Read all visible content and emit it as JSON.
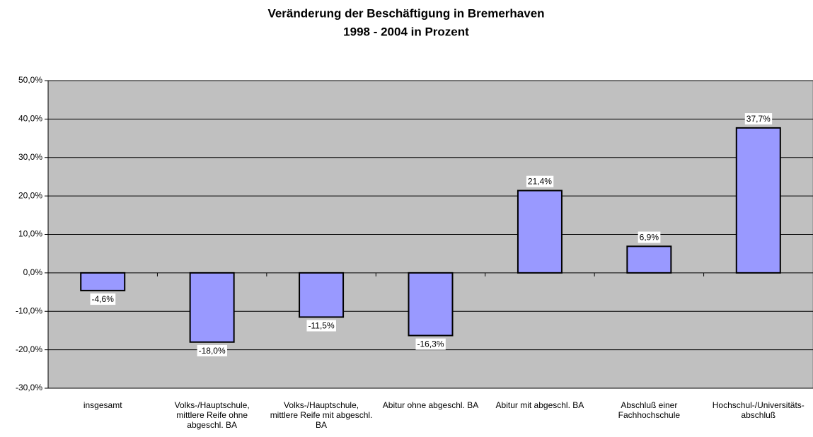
{
  "chart_data": {
    "type": "bar",
    "title": "Veränderung der Beschäftigung in Bremerhaven",
    "subtitle": "1998 - 2004 in Prozent",
    "categories": [
      "insgesamt",
      "Volks-/Hauptschule, mittlere Reife ohne abgeschl. BA",
      "Volks-/Hauptschule, mittlere Reife mit abgeschl. BA",
      "Abitur ohne abgeschl. BA",
      "Abitur mit abgeschl. BA",
      "Abschluß einer Fachhochschule",
      "Hochschul-/Universitäts-abschluß"
    ],
    "values": [
      -4.6,
      -18.0,
      -11.5,
      -16.3,
      21.4,
      6.9,
      37.7
    ],
    "value_labels": [
      "-4,6%",
      "-18,0%",
      "-11,5%",
      "-16,3%",
      "21,4%",
      "6,9%",
      "37,7%"
    ],
    "color": "#9999ff",
    "ylim": [
      -30,
      50
    ],
    "yticks": [
      {
        "value": -30,
        "label": "-30,0%"
      },
      {
        "value": -20,
        "label": "-20,0%"
      },
      {
        "value": -10,
        "label": "-10,0%"
      },
      {
        "value": 0,
        "label": "0,0%"
      },
      {
        "value": 10,
        "label": "10,0%"
      },
      {
        "value": 20,
        "label": "20,0%"
      },
      {
        "value": 30,
        "label": "30,0%"
      },
      {
        "value": 40,
        "label": "40,0%"
      },
      {
        "value": 50,
        "label": "50,0%"
      }
    ],
    "grid": true
  }
}
